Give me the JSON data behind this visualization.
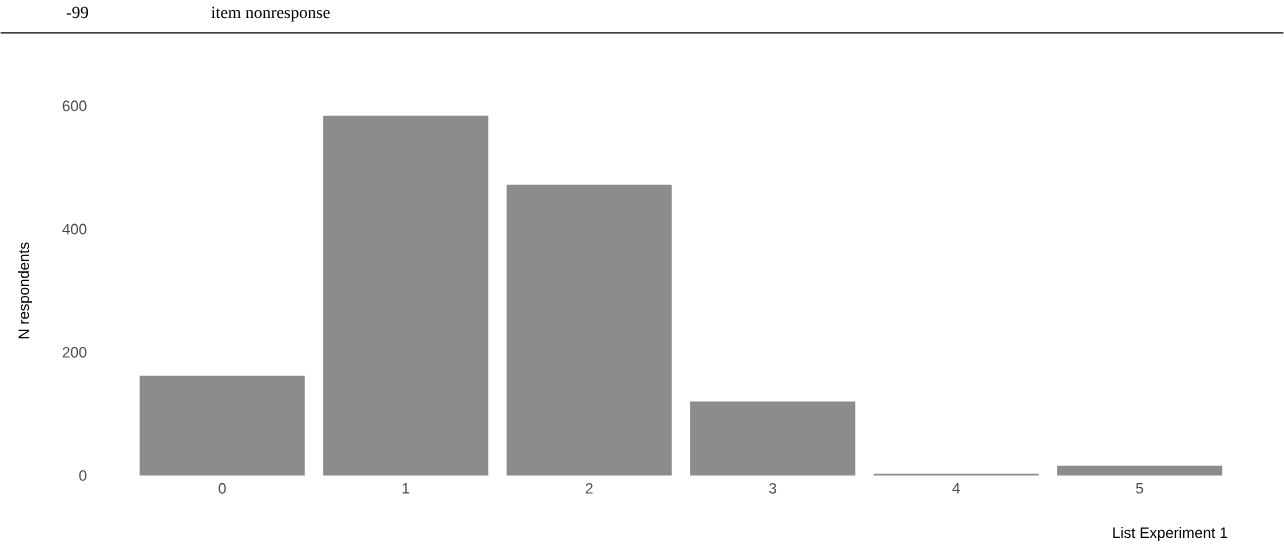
{
  "chart_data": {
    "type": "bar",
    "annotations": [
      "-99",
      "item nonresponse"
    ],
    "xlabel": "List Experiment 1",
    "ylabel": "N respondents",
    "categories": [
      "0",
      "1",
      "2",
      "3",
      "4",
      "5"
    ],
    "values": [
      162,
      584,
      472,
      120,
      3,
      16
    ],
    "color": "#8c8c8c",
    "ylim": [
      0,
      600
    ],
    "yticks": [
      0,
      200,
      400,
      600
    ],
    "grid": false
  }
}
